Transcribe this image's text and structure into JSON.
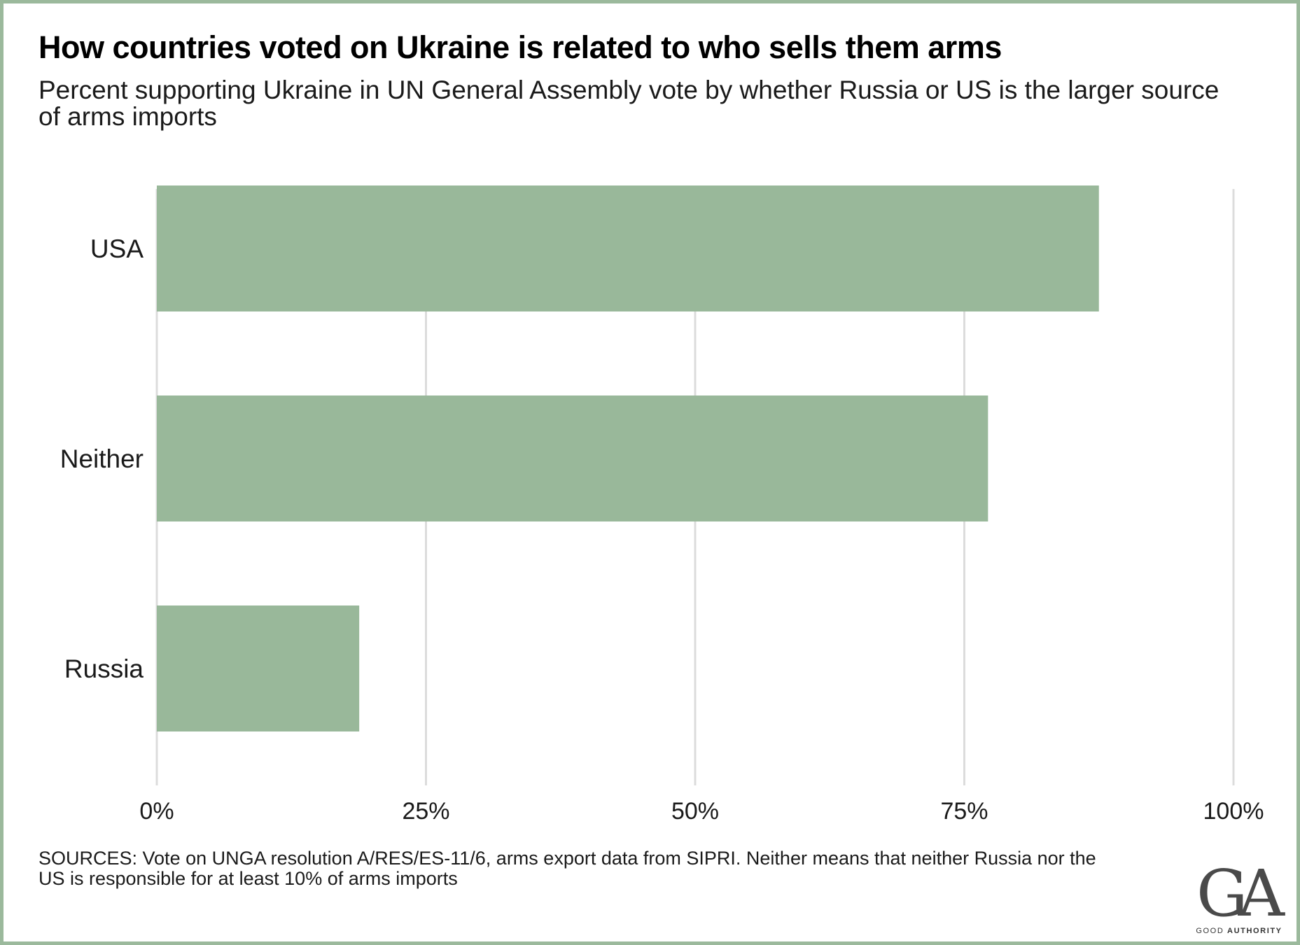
{
  "chart_data": {
    "type": "bar",
    "orientation": "horizontal",
    "title": "How countries voted on Ukraine is related to who sells them arms",
    "subtitle": "Percent supporting Ukraine in UN General Assembly vote by whether Russia or US is the larger source of arms imports",
    "categories": [
      "USA",
      "Neither",
      "Russia"
    ],
    "values": [
      87.5,
      77.2,
      18.8
    ],
    "xlim": [
      0,
      100
    ],
    "xticks": [
      0,
      25,
      50,
      75,
      100
    ],
    "xtick_labels": [
      "0%",
      "25%",
      "50%",
      "75%",
      "100%"
    ],
    "grid": true,
    "colors": {
      "bar": "#99b89a",
      "grid": "#dcdcdc"
    }
  },
  "sources": "SOURCES: Vote on UNGA resolution A/RES/ES-11/6, arms export data from SIPRI. Neither means that neither Russia nor the US is responsible for at least 10% of arms imports",
  "logo": {
    "mark": "GA",
    "text_light": "GOOD ",
    "text_bold": "AUTHORITY"
  },
  "colors": {
    "frame": "#9bb99c"
  }
}
